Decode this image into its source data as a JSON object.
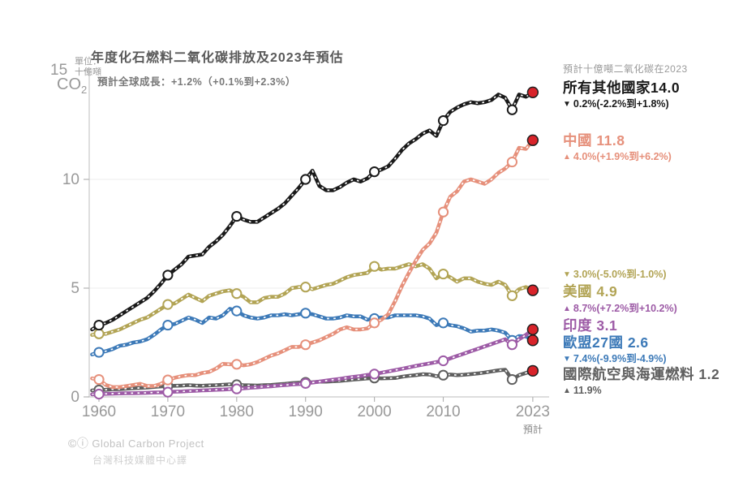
{
  "title": "年度化石燃料二氧化碳排放及2023年預估",
  "subtitle": "預計全球成長：+1.2%（+0.1%到+2.3%）",
  "legend_header": "預計十億噸二氧化碳在2023",
  "y_axis": {
    "top_tick_label": "15",
    "unit_prefix": "單位：",
    "unit": "十億噸",
    "molecule": "CO",
    "molecule_sub": "2",
    "tick_values": [
      0,
      5,
      10
    ],
    "gridline_values": [
      5,
      10
    ]
  },
  "x_axis": {
    "ticks": [
      1960,
      1970,
      1980,
      1990,
      2000,
      2010,
      2023
    ],
    "projected_label": "預計"
  },
  "footer": {
    "license_icons": "©ⓘ",
    "source": "Global Carbon Project",
    "translation": "台灣科技媒體中心譯"
  },
  "colors": {
    "projection_dot": "#d8232a",
    "projection_dot_ring": "#1f1f1f",
    "grid": "#ededed",
    "axis": "#c9c9c9",
    "tick": "#b5b5b5"
  },
  "chart_data": {
    "type": "line",
    "title": "年度化石燃料二氧化碳排放及2023年預估",
    "ylabel": "十億噸 CO2",
    "ylim": [
      0,
      15
    ],
    "x_start_year": 1959,
    "x_end_year": 2022,
    "projection_year": 2023,
    "marker_years": [
      1960,
      1970,
      1980,
      1990,
      2000,
      2010,
      2020
    ],
    "grid": "horizontal",
    "legend_position": "right",
    "series": [
      {
        "key": "others",
        "name": "所有其他國家",
        "display": "所有其他國家14.0",
        "value_2023": 14.0,
        "trend": "down",
        "trend_glyph": "▼",
        "change_text": "0.2%(-2.2%到+1.8%)",
        "color": "#1a1a1a",
        "values": [
          3.1,
          3.3,
          3.4,
          3.55,
          3.75,
          3.95,
          4.15,
          4.35,
          4.55,
          4.85,
          5.2,
          5.6,
          5.85,
          6.1,
          6.45,
          6.5,
          6.55,
          6.9,
          7.15,
          7.45,
          7.85,
          8.3,
          8.15,
          8.05,
          8.05,
          8.25,
          8.45,
          8.65,
          8.9,
          9.25,
          9.6,
          10.0,
          10.4,
          9.7,
          9.5,
          9.5,
          9.65,
          9.85,
          10.0,
          9.9,
          10.05,
          10.35,
          10.45,
          10.6,
          10.95,
          11.35,
          11.65,
          11.85,
          12.1,
          12.25,
          12.0,
          12.7,
          13.1,
          13.3,
          13.45,
          13.55,
          13.5,
          13.55,
          13.65,
          13.9,
          13.75,
          13.2,
          13.9,
          13.8
        ]
      },
      {
        "key": "china",
        "name": "中國",
        "display": "中國 11.8",
        "value_2023": 11.8,
        "trend": "up",
        "trend_glyph": "▲",
        "change_text": "4.0%(+1.9%到+6.2%)",
        "color": "#e6907b",
        "values": [
          0.85,
          0.8,
          0.55,
          0.45,
          0.45,
          0.5,
          0.55,
          0.6,
          0.5,
          0.5,
          0.6,
          0.78,
          0.88,
          0.95,
          1.0,
          1.0,
          1.1,
          1.15,
          1.3,
          1.52,
          1.5,
          1.5,
          1.45,
          1.5,
          1.6,
          1.75,
          1.9,
          2.0,
          2.15,
          2.3,
          2.3,
          2.4,
          2.5,
          2.6,
          2.75,
          2.9,
          3.1,
          3.2,
          3.1,
          3.1,
          3.15,
          3.4,
          3.55,
          3.8,
          4.4,
          5.1,
          5.7,
          6.25,
          6.75,
          7.05,
          7.55,
          8.5,
          9.2,
          9.45,
          9.9,
          10.0,
          9.9,
          9.8,
          10.0,
          10.3,
          10.5,
          10.8,
          11.45,
          11.4
        ]
      },
      {
        "key": "usa",
        "name": "美國",
        "display": "美國 4.9",
        "value_2023": 4.9,
        "trend": "down",
        "trend_glyph": "▼",
        "change_text": "3.0%(-5.0%到-1.0%)",
        "color": "#b2a455",
        "values": [
          2.85,
          2.9,
          2.9,
          3.0,
          3.1,
          3.25,
          3.4,
          3.55,
          3.65,
          3.85,
          4.05,
          4.25,
          4.3,
          4.5,
          4.7,
          4.55,
          4.4,
          4.65,
          4.75,
          4.85,
          4.9,
          4.75,
          4.6,
          4.35,
          4.35,
          4.55,
          4.6,
          4.6,
          4.75,
          5.0,
          5.05,
          5.05,
          4.95,
          5.05,
          5.15,
          5.2,
          5.35,
          5.5,
          5.6,
          5.65,
          5.7,
          6.0,
          5.85,
          5.9,
          5.9,
          6.0,
          6.1,
          6.0,
          6.1,
          5.9,
          5.45,
          5.65,
          5.5,
          5.3,
          5.45,
          5.45,
          5.3,
          5.2,
          5.15,
          5.3,
          5.15,
          4.65,
          4.95,
          5.05
        ]
      },
      {
        "key": "india",
        "name": "印度",
        "display": "印度 3.1",
        "value_2023": 3.1,
        "trend": "up",
        "trend_glyph": "▲",
        "change_text": "8.7%(+7.2%到+10.2%)",
        "color": "#9d5ba6",
        "values": [
          0.12,
          0.13,
          0.14,
          0.15,
          0.16,
          0.17,
          0.17,
          0.18,
          0.19,
          0.2,
          0.21,
          0.22,
          0.24,
          0.25,
          0.27,
          0.28,
          0.3,
          0.31,
          0.33,
          0.34,
          0.36,
          0.37,
          0.39,
          0.42,
          0.44,
          0.47,
          0.49,
          0.52,
          0.54,
          0.57,
          0.59,
          0.62,
          0.66,
          0.7,
          0.75,
          0.79,
          0.83,
          0.88,
          0.92,
          0.96,
          1.01,
          1.05,
          1.11,
          1.17,
          1.23,
          1.29,
          1.36,
          1.42,
          1.48,
          1.54,
          1.6,
          1.66,
          1.77,
          1.88,
          1.99,
          2.1,
          2.21,
          2.32,
          2.43,
          2.54,
          2.65,
          2.4,
          2.65,
          2.85
        ]
      },
      {
        "key": "eu27",
        "name": "歐盟27國",
        "display": "歐盟27國 2.6",
        "value_2023": 2.6,
        "trend": "down",
        "trend_glyph": "▼",
        "change_text": "7.4%(-9.9%到-4.9%)",
        "color": "#3d7ab8",
        "values": [
          1.95,
          2.05,
          2.1,
          2.2,
          2.35,
          2.4,
          2.5,
          2.55,
          2.65,
          2.85,
          3.1,
          3.3,
          3.35,
          3.5,
          3.65,
          3.55,
          3.4,
          3.65,
          3.6,
          3.75,
          4.05,
          3.95,
          3.75,
          3.65,
          3.6,
          3.65,
          3.75,
          3.75,
          3.8,
          3.75,
          3.8,
          3.85,
          3.8,
          3.7,
          3.6,
          3.6,
          3.65,
          3.75,
          3.7,
          3.7,
          3.55,
          3.6,
          3.65,
          3.65,
          3.75,
          3.75,
          3.75,
          3.75,
          3.7,
          3.6,
          3.3,
          3.4,
          3.3,
          3.25,
          3.15,
          3.0,
          3.05,
          3.05,
          3.1,
          3.05,
          2.95,
          2.6,
          2.8,
          2.78
        ]
      },
      {
        "key": "intl_transport",
        "name": "國際航空與海運燃料",
        "display": "國際航空與海運燃料 1.2",
        "value_2023": 1.2,
        "trend": "up",
        "trend_glyph": "▲",
        "change_text": "11.9%",
        "color": "#5f5f5f",
        "values": [
          0.3,
          0.32,
          0.33,
          0.35,
          0.36,
          0.38,
          0.4,
          0.41,
          0.43,
          0.46,
          0.48,
          0.5,
          0.51,
          0.52,
          0.54,
          0.52,
          0.51,
          0.53,
          0.54,
          0.56,
          0.58,
          0.56,
          0.54,
          0.53,
          0.52,
          0.54,
          0.55,
          0.58,
          0.6,
          0.63,
          0.65,
          0.67,
          0.67,
          0.7,
          0.7,
          0.72,
          0.74,
          0.77,
          0.8,
          0.82,
          0.85,
          0.87,
          0.85,
          0.86,
          0.87,
          0.93,
          0.97,
          1.0,
          1.04,
          1.03,
          0.95,
          1.0,
          1.03,
          1.0,
          1.02,
          1.05,
          1.08,
          1.12,
          1.17,
          1.22,
          1.25,
          0.8,
          1.0,
          1.1
        ]
      }
    ]
  }
}
